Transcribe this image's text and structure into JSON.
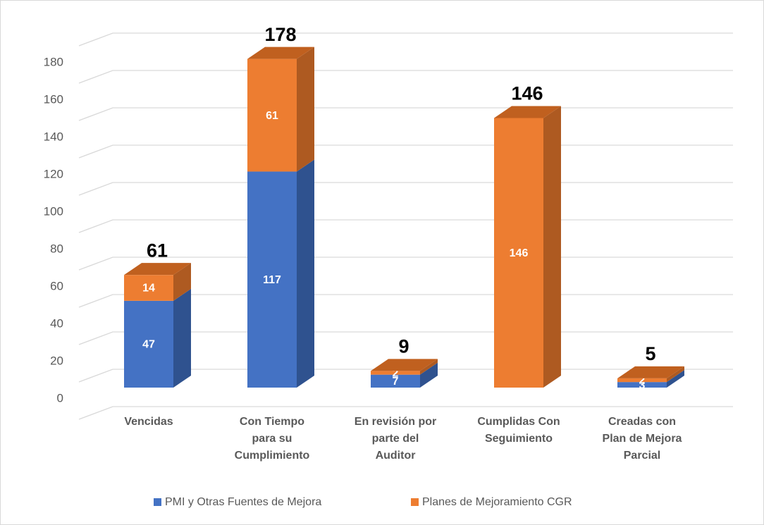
{
  "chart_data": {
    "type": "bar3d_stacked",
    "categories": [
      "Vencidas",
      "Con Tiempo\npara su\nCumplimiento",
      "En revisión por\nparte del\nAuditor",
      "Cumplidas Con\nSeguimiento",
      "Creadas con\nPlan de Mejora\nParcial"
    ],
    "series": [
      {
        "name": "PMI y Otras Fuentes de Mejora",
        "color": "#4472c4",
        "side_color": "#2f528f",
        "top_color": "#5b86d4",
        "values": [
          47,
          117,
          7,
          null,
          3
        ]
      },
      {
        "name": "Planes de Mejoramiento CGR",
        "color": "#ed7d31",
        "side_color": "#ae5a21",
        "top_color": "#c0601f",
        "values": [
          14,
          61,
          2,
          146,
          2
        ]
      }
    ],
    "totals": [
      61,
      178,
      9,
      146,
      5
    ],
    "ylim": [
      0,
      200
    ],
    "yticks": [
      0,
      20,
      40,
      60,
      80,
      100,
      120,
      140,
      160,
      180
    ],
    "grid": true,
    "legend": "bottom"
  }
}
